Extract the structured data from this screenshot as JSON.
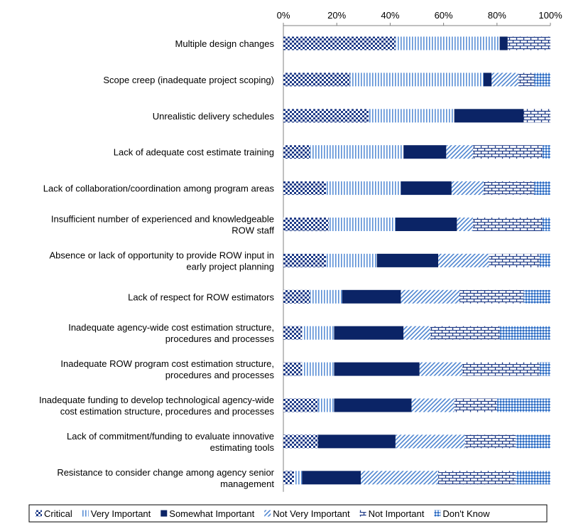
{
  "chart_data": {
    "type": "bar",
    "orientation": "horizontal",
    "stacked": true,
    "percent_stacked": true,
    "xlim": [
      0,
      100
    ],
    "x_ticks": [
      "0%",
      "20%",
      "40%",
      "60%",
      "80%",
      "100%"
    ],
    "axis_position": "top",
    "legend_position": "bottom",
    "categories": [
      [
        "Multiple design changes"
      ],
      [
        "Scope creep (inadequate project scoping)"
      ],
      [
        "Unrealistic delivery schedules"
      ],
      [
        "Lack of adequate cost estimate training"
      ],
      [
        "Lack of collaboration/coordination among program areas"
      ],
      [
        "Insufficient number of experienced and knowledgeable",
        "ROW staff"
      ],
      [
        "Absence or lack of opportunity to provide ROW input in",
        "early project planning"
      ],
      [
        "Lack of respect for ROW estimators"
      ],
      [
        "Inadequate agency-wide cost estimation structure,",
        "procedures and processes"
      ],
      [
        "Inadequate ROW program cost estimation structure,",
        "procedures and processes"
      ],
      [
        "Inadequate funding to develop technological agency-wide",
        "cost estimation structure, procedures and processes"
      ],
      [
        "Lack of commitment/funding to evaluate innovative",
        "estimating tools"
      ],
      [
        "Resistance to consider change among agency senior",
        "management"
      ]
    ],
    "series": [
      {
        "name": "Critical",
        "color": "#1f3c88",
        "pattern": "checker",
        "values": [
          42,
          25,
          32,
          10,
          16,
          17,
          16,
          10,
          7,
          7,
          13,
          13,
          4
        ]
      },
      {
        "name": "Very Important",
        "color": "#5b8fd6",
        "pattern": "vlines",
        "values": [
          39,
          50,
          32,
          35,
          28,
          25,
          19,
          12,
          12,
          12,
          6,
          0,
          3
        ]
      },
      {
        "name": "Somewhat Important",
        "color": "#0b2466",
        "pattern": "solid",
        "values": [
          3,
          3,
          26,
          16,
          19,
          23,
          23,
          22,
          26,
          32,
          29,
          29,
          22
        ]
      },
      {
        "name": "Not Very Important",
        "color": "#4f86d1",
        "pattern": "diag",
        "values": [
          0,
          10,
          0,
          10,
          12,
          6,
          19,
          22,
          10,
          16,
          16,
          26,
          29
        ]
      },
      {
        "name": "Not Important",
        "color": "#1f3c88",
        "pattern": "brick",
        "values": [
          16,
          6,
          10,
          26,
          19,
          26,
          19,
          24,
          26,
          29,
          16,
          19,
          29
        ]
      },
      {
        "name": "Don't Know",
        "color": "#3f7ed0",
        "pattern": "dots",
        "values": [
          0,
          6,
          0,
          3,
          6,
          3,
          4,
          10,
          19,
          4,
          20,
          13,
          13
        ]
      }
    ]
  }
}
